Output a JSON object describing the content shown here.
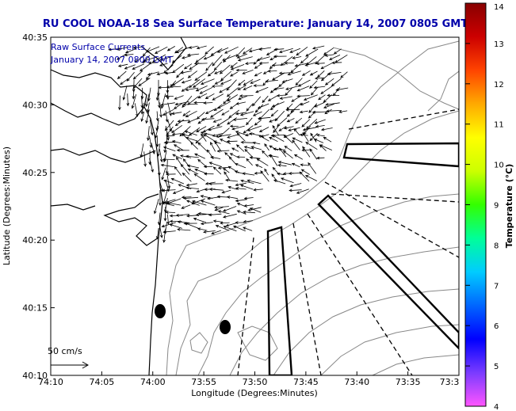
{
  "title": "RU COOL  NOAA-18  Sea Surface Temperature:  January 14, 2007 0805 GMT",
  "legend_lines": [
    "Raw Surface Currents",
    "January 14, 2007 0800 GMT"
  ],
  "xlabel": "Longitude (Degrees:Minutes)",
  "ylabel": "Latitude (Degrees:Minutes)",
  "x_ticks": [
    "74:10",
    "74:05",
    "74:00",
    "73:55",
    "73:50",
    "73:45",
    "73:40",
    "73:35",
    "73:3"
  ],
  "y_ticks": [
    "40:35",
    "40:30",
    "40:25",
    "40:20",
    "40:15",
    "40:10"
  ],
  "scale_label": "50 cm/s",
  "colorbar": {
    "label": "Temperature (°C)",
    "min": 4,
    "max": 14,
    "ticks": [
      "4",
      "5",
      "6",
      "7",
      "8",
      "9",
      "10",
      "11",
      "12",
      "13",
      "14"
    ],
    "stops": [
      "#ff55ff",
      "#7a3bff",
      "#0000ff",
      "#0066ff",
      "#00ccff",
      "#00ff99",
      "#33ff00",
      "#ccff00",
      "#ffff00",
      "#ffaa00",
      "#ff4400",
      "#cc0000",
      "#880000"
    ]
  },
  "colors": {
    "title": "#0000aa",
    "vectors": "#000000",
    "bathymetry": "#888888",
    "coast": "#000000"
  },
  "map_extent": {
    "lon": [
      "74:10",
      "73:30"
    ],
    "lat": [
      "40:10",
      "40:35"
    ]
  }
}
